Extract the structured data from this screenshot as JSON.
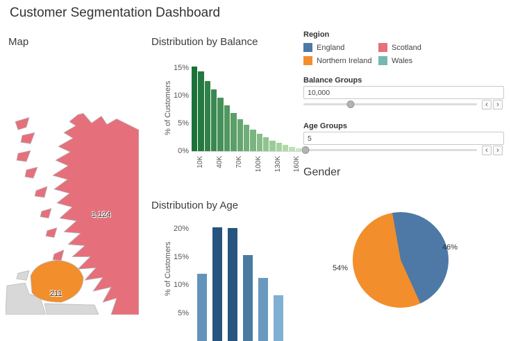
{
  "title": "Customer Segmentation Dashboard",
  "map": {
    "title": "Map",
    "scotland_label": "1,124",
    "ni_label": "211"
  },
  "map_colors": {
    "land_gray": "#d8d8d8",
    "scotland": "#e5707b",
    "northern_ireland": "#f28e2b"
  },
  "region_legend": {
    "title": "Region",
    "items": [
      {
        "label": "England",
        "color": "#4e79a7"
      },
      {
        "label": "Scotland",
        "color": "#e5707b"
      },
      {
        "label": "Northern Ireland",
        "color": "#f28e2b"
      },
      {
        "label": "Wales",
        "color": "#76b7b2"
      }
    ]
  },
  "balance_param": {
    "label": "Balance Groups",
    "value": "10,000",
    "slider_pos": 0.27
  },
  "age_param": {
    "label": "Age Groups",
    "value": "5",
    "slider_pos": 0.01
  },
  "controls": {
    "left_arrow": "‹",
    "right_arrow": "›"
  },
  "chart_data": [
    {
      "id": "balance",
      "type": "bar",
      "title": "Distribution by Balance",
      "ylabel": "% of Customers",
      "ylim": [
        0,
        16
      ],
      "yticks": [
        0,
        5,
        10,
        15
      ],
      "xticks": [
        {
          "i": 1,
          "label": "10K"
        },
        {
          "i": 4,
          "label": "40K"
        },
        {
          "i": 7,
          "label": "70K"
        },
        {
          "i": 10,
          "label": "100K"
        },
        {
          "i": 13,
          "label": "130K"
        },
        {
          "i": 16,
          "label": "160K"
        }
      ],
      "values": [
        15.3,
        14.4,
        12.6,
        11.1,
        9.6,
        8.2,
        6.9,
        5.8,
        4.8,
        3.9,
        3.1,
        2.5,
        1.9,
        1.5,
        1.1,
        0.8,
        0.5
      ],
      "shade": "index",
      "colors": [
        "#1a7238",
        "#c6e8b8"
      ]
    },
    {
      "id": "age",
      "type": "bar",
      "title": "Distribution by Age",
      "ylabel": "% of Customers",
      "ylim": [
        0,
        21
      ],
      "yticks": [
        5,
        10,
        15,
        20
      ],
      "values": [
        12.0,
        20.3,
        20.2,
        15.3,
        11.2,
        8.1
      ],
      "shade": "value",
      "colors": [
        "#7fb0d4",
        "#27547e"
      ]
    },
    {
      "id": "gender",
      "type": "pie",
      "title": "Gender",
      "start_angle": -10,
      "slices": [
        {
          "label": "46%",
          "value": 46,
          "color": "#4e79a7"
        },
        {
          "label": "54%",
          "value": 54,
          "color": "#f28e2b"
        }
      ]
    }
  ]
}
